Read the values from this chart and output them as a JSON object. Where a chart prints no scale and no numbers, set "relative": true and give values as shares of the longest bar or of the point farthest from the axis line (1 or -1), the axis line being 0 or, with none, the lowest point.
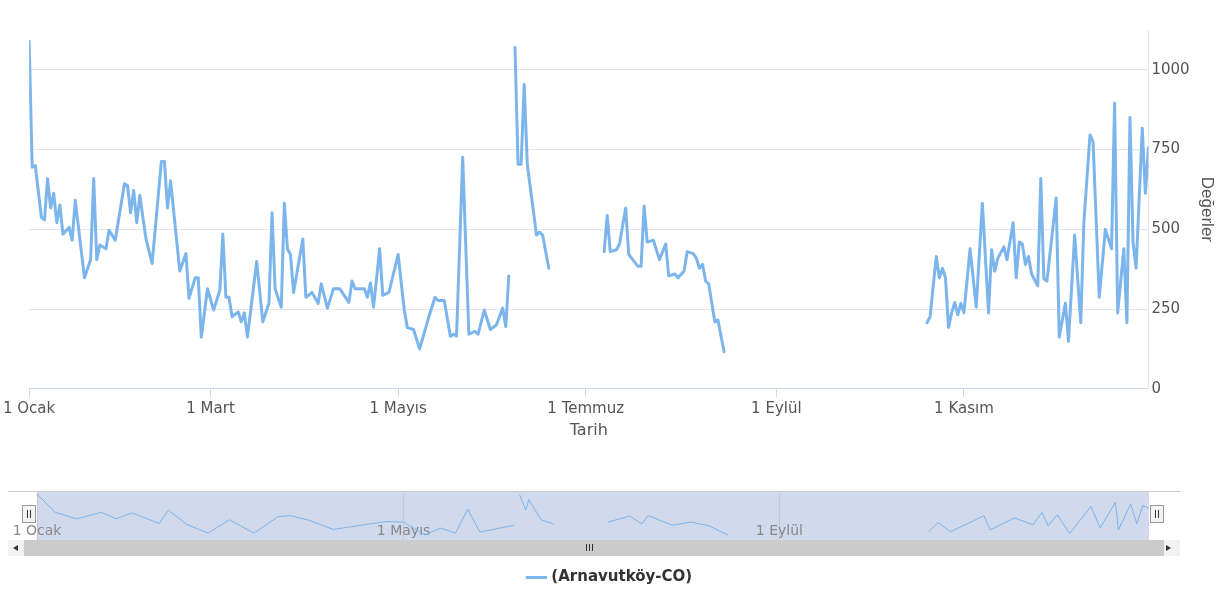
{
  "chart_data": [
    {
      "type": "line",
      "xlabel": "Tarih",
      "ylabel": "Değerler",
      "x": [
        "--01-01",
        "--01-02",
        "--01-03",
        "--01-05",
        "--01-06",
        "--01-07",
        "--01-08",
        "--01-09",
        "--01-10",
        "--01-11",
        "--01-12",
        "--01-14",
        "--01-15",
        "--01-16",
        "--01-19",
        "--01-21",
        "--01-22",
        "--01-23",
        "--01-24",
        "--01-26",
        "--01-27",
        "--01-29",
        "--02-01",
        "--02-02",
        "--02-03",
        "--02-04",
        "--02-05",
        "--02-06",
        "--02-08",
        "--02-10",
        "--02-13",
        "--02-14",
        "--02-15",
        "--02-16",
        "--02-19",
        "--02-21",
        "--02-22",
        "--02-24",
        "--02-25",
        "--02-26",
        "--02-28",
        "--03-02",
        "--03-04",
        "--03-05",
        "--03-06",
        "--03-07",
        "--03-08",
        "--03-10",
        "--03-11",
        "--03-12",
        "--03-13",
        "--03-16",
        "--03-18",
        "--03-20",
        "--03-21",
        "--03-22",
        "--03-24",
        "--03-25",
        "--03-26",
        "--03-27",
        "--03-28",
        "--03-31",
        "--04-01",
        "--04-03",
        "--04-05",
        "--04-06",
        "--04-08",
        "--04-10",
        "--04-12",
        "--04-15",
        "--04-16",
        "--04-17",
        "--04-20",
        "--04-21",
        "--04-22",
        "--04-23",
        "--04-25",
        "--04-26",
        "--04-28",
        "--05-01",
        "--05-03",
        "--05-04",
        "--05-06",
        "--05-08",
        "--05-11",
        "--05-13",
        "--05-14",
        "--05-16",
        "--05-18",
        "--05-19",
        "--05-20",
        "--05-22",
        "--05-24",
        "--05-26",
        "--05-27",
        "--05-29",
        "--05-31",
        "--06-02",
        "--06-04",
        "--06-05",
        "--06-06",
        "--06-07",
        "--06-08",
        "--06-09",
        "--06-10",
        "--06-11",
        "--06-12",
        "--06-15",
        "--06-16",
        "--06-17",
        "--06-19",
        "--06-20",
        "--07-07",
        "--07-08",
        "--07-09",
        "--07-11",
        "--07-12",
        "--07-14",
        "--07-15",
        "--07-16",
        "--07-18",
        "--07-19",
        "--07-20",
        "--07-21",
        "--07-23",
        "--07-25",
        "--07-27",
        "--07-28",
        "--07-30",
        "--07-31",
        "--08-02",
        "--08-03",
        "--08-05",
        "--08-06",
        "--08-07",
        "--08-08",
        "--08-09",
        "--08-10",
        "--08-12",
        "--08-13",
        "--08-15",
        "--08-16",
        "--10-20",
        "--10-21",
        "--10-23",
        "--10-24",
        "--10-25",
        "--10-26",
        "--10-27",
        "--10-28",
        "--10-29",
        "--10-30",
        "--10-31",
        "--11-01",
        "--11-03",
        "--11-05",
        "--11-07",
        "--11-09",
        "--11-10",
        "--11-11",
        "--11-12",
        "--11-14",
        "--11-15",
        "--11-17",
        "--11-18",
        "--11-19",
        "--11-20",
        "--11-21",
        "--11-22",
        "--11-23",
        "--11-25",
        "--11-26",
        "--11-27",
        "--11-28",
        "--12-01",
        "--12-02",
        "--12-04",
        "--12-05",
        "--12-07",
        "--12-09",
        "--12-10",
        "--12-12",
        "--12-13",
        "--12-15",
        "--12-17",
        "--12-19",
        "--12-20",
        "--12-21",
        "--12-23",
        "--12-24",
        "--12-25",
        "--12-26",
        "--12-27",
        "--12-29",
        "--12-30",
        "--12-31"
      ],
      "series": [
        {
          "name": "(Arnavutköy-CO)",
          "color": "#7cb5ec",
          "values": [
            1090,
            695,
            700,
            537,
            530,
            659,
            567,
            613,
            521,
            576,
            485,
            506,
            466,
            591,
            348,
            405,
            659,
            405,
            451,
            439,
            497,
            466,
            643,
            637,
            552,
            622,
            521,
            607,
            470,
            393,
            713,
            713,
            567,
            652,
            369,
            424,
            284,
            348,
            348,
            162,
            314,
            247,
            308,
            485,
            287,
            287,
            226,
            241,
            210,
            238,
            162,
            399,
            210,
            268,
            552,
            314,
            256,
            582,
            439,
            421,
            302,
            470,
            287,
            302,
            268,
            329,
            253,
            314,
            314,
            271,
            338,
            314,
            314,
            287,
            332,
            256,
            439,
            293,
            302,
            421,
            247,
            192,
            186,
            125,
            226,
            287,
            277,
            277,
            165,
            171,
            165,
            726,
            171,
            180,
            171,
            247,
            186,
            201,
            253,
            195,
            354,
            null,
            1070,
            704,
            704,
            954,
            704,
            482,
            491,
            482,
            378,
            null,
            430,
            543,
            430,
            436,
            454,
            567,
            421,
            409,
            384,
            384,
            573,
            460,
            466,
            405,
            454,
            354,
            360,
            348,
            369,
            430,
            424,
            409,
            378,
            390,
            338,
            329,
            210,
            216,
            116,
            null,
            207,
            226,
            415,
            348,
            378,
            348,
            192,
            238,
            271,
            232,
            268,
            238,
            439,
            256,
            582,
            238,
            436,
            369,
            409,
            445,
            405,
            521,
            348,
            460,
            454,
            390,
            415,
            360,
            323,
            659,
            345,
            338,
            598,
            162,
            268,
            149,
            482,
            207,
            521,
            796,
            774,
            287,
            500,
            439,
            896,
            238,
            439,
            207,
            851,
            460,
            378,
            817,
            613,
            756
          ]
        }
      ],
      "xlim": [
        "--01-01",
        "--12-31"
      ],
      "xticks": [
        {
          "value": "--01-01",
          "label": "1 Ocak"
        },
        {
          "value": "--03-01",
          "label": "1 Mart"
        },
        {
          "value": "--05-01",
          "label": "1 Mayıs"
        },
        {
          "value": "--07-01",
          "label": "1 Temmuz"
        },
        {
          "value": "--09-01",
          "label": "1 Eylül"
        },
        {
          "value": "--11-01",
          "label": "1 Kasım"
        }
      ],
      "ylim": [
        0,
        1125
      ],
      "yticks": [
        0,
        250,
        500,
        750,
        1000
      ],
      "grid": "y",
      "legend": "bottom"
    },
    {
      "type": "line",
      "relative": true,
      "tick_labels": "x",
      "grid": "x",
      "x": [
        "--01-01",
        "--01-07",
        "--01-14",
        "--01-22",
        "--01-27",
        "--02-01",
        "--02-10",
        "--02-13",
        "--02-19",
        "--02-26",
        "--03-05",
        "--03-13",
        "--03-21",
        "--03-25",
        "--03-31",
        "--04-08",
        "--04-16",
        "--04-25",
        "--05-01",
        "--05-08",
        "--05-13",
        "--05-18",
        "--05-22",
        "--05-26",
        "--06-06",
        "--06-07",
        "--06-08",
        "--06-10",
        "--06-11",
        "--06-15",
        "--06-19",
        "--06-20",
        "--07-07",
        "--07-14",
        "--07-18",
        "--07-20",
        "--07-28",
        "--08-03",
        "--08-09",
        "--08-15",
        "--08-16",
        "--10-20",
        "--10-23",
        "--10-27",
        "--11-03",
        "--11-07",
        "--11-09",
        "--11-17",
        "--11-23",
        "--11-26",
        "--11-28",
        "--12-01",
        "--12-05",
        "--12-12",
        "--12-15",
        "--12-20",
        "--12-21",
        "--12-25",
        "--12-27",
        "--12-29",
        "--12-31"
      ],
      "series": [
        {
          "color": "#7cb5ec",
          "values": [
            1.0,
            0.6,
            0.46,
            0.6,
            0.46,
            0.59,
            0.36,
            0.65,
            0.34,
            0.15,
            0.44,
            0.15,
            0.51,
            0.53,
            0.43,
            0.23,
            0.31,
            0.4,
            0.39,
            0.11,
            0.26,
            0.15,
            0.67,
            0.17,
            0.32,
            null,
            0.98,
            0.65,
            0.88,
            0.44,
            0.35,
            null,
            0.39,
            0.52,
            0.35,
            0.53,
            0.32,
            0.39,
            0.31,
            0.11,
            null,
            0.19,
            0.38,
            0.18,
            0.4,
            0.53,
            0.22,
            0.48,
            0.33,
            0.6,
            0.31,
            0.55,
            0.14,
            0.73,
            0.26,
            0.82,
            0.22,
            0.78,
            0.35,
            0.75,
            0.69
          ]
        }
      ],
      "xlim": [
        "--01-01",
        "--12-31"
      ],
      "xticks": [
        {
          "value": "--01-01",
          "label": "1 Ocak"
        },
        {
          "value": "--05-01",
          "label": "1 Mayıs"
        },
        {
          "value": "--09-01",
          "label": "1 Eylül"
        }
      ]
    }
  ]
}
